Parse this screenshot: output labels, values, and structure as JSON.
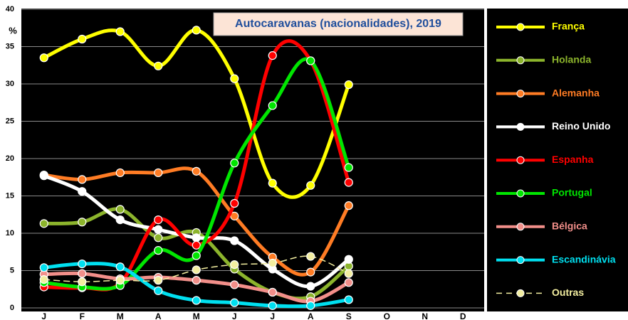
{
  "chart_data": {
    "type": "line",
    "title": "Autocaravanas (nacionalidades), 2019",
    "y_label": "%",
    "categories": [
      "J",
      "F",
      "M",
      "A",
      "M",
      "J",
      "J",
      "A",
      "S",
      "O",
      "N",
      "D"
    ],
    "series": [
      {
        "name": "França",
        "color": "#ffff00",
        "values": [
          33.5,
          36,
          37,
          32.4,
          37.2,
          30.7,
          16.7,
          16.4,
          29.9,
          null,
          null,
          null
        ]
      },
      {
        "name": "Holanda",
        "color": "#8cb42c",
        "values": [
          11.3,
          11.5,
          13.2,
          9.4,
          10.1,
          5.2,
          2.1,
          1.5,
          5.6,
          null,
          null,
          null
        ]
      },
      {
        "name": "Alemanha",
        "color": "#ff7c24",
        "values": [
          17.8,
          17.2,
          18.1,
          18.1,
          18.3,
          12.3,
          6.8,
          4.8,
          13.7,
          null,
          null,
          null
        ]
      },
      {
        "name": "Reino Unido",
        "color": "#ffffff",
        "values": [
          17.7,
          15.6,
          11.8,
          10.5,
          9.4,
          9.0,
          5.2,
          2.9,
          6.5,
          null,
          null,
          null
        ]
      },
      {
        "name": "Espanha",
        "color": "#ff0000",
        "values": [
          2.8,
          2.7,
          3.3,
          11.8,
          8.4,
          14.0,
          33.8,
          33.1,
          16.8,
          null,
          null,
          null
        ]
      },
      {
        "name": "Portugal",
        "color": "#00e600",
        "values": [
          3.4,
          2.8,
          3.0,
          7.7,
          7.0,
          19.4,
          27.1,
          33.1,
          18.8,
          null,
          null,
          null
        ]
      },
      {
        "name": "Bélgica",
        "color": "#f28f8a",
        "values": [
          4.5,
          4.6,
          3.9,
          4.1,
          3.7,
          3.1,
          2.1,
          0.9,
          3.4,
          null,
          null,
          null
        ]
      },
      {
        "name": "Escandinávia",
        "color": "#00e0f0",
        "values": [
          5.4,
          5.9,
          5.5,
          2.3,
          1.0,
          0.7,
          0.3,
          0.3,
          1.1,
          null,
          null,
          null
        ]
      },
      {
        "name": "Outras",
        "color": "#f3eea0",
        "dashed": true,
        "values": [
          3.8,
          3.5,
          3.7,
          3.7,
          5.1,
          5.8,
          6.0,
          6.9,
          4.6,
          null,
          null,
          null
        ]
      }
    ],
    "ylim": [
      0,
      40
    ],
    "yticks": [
      0,
      5,
      10,
      15,
      20,
      25,
      30,
      35,
      40
    ],
    "grid": true,
    "legend": "right"
  }
}
